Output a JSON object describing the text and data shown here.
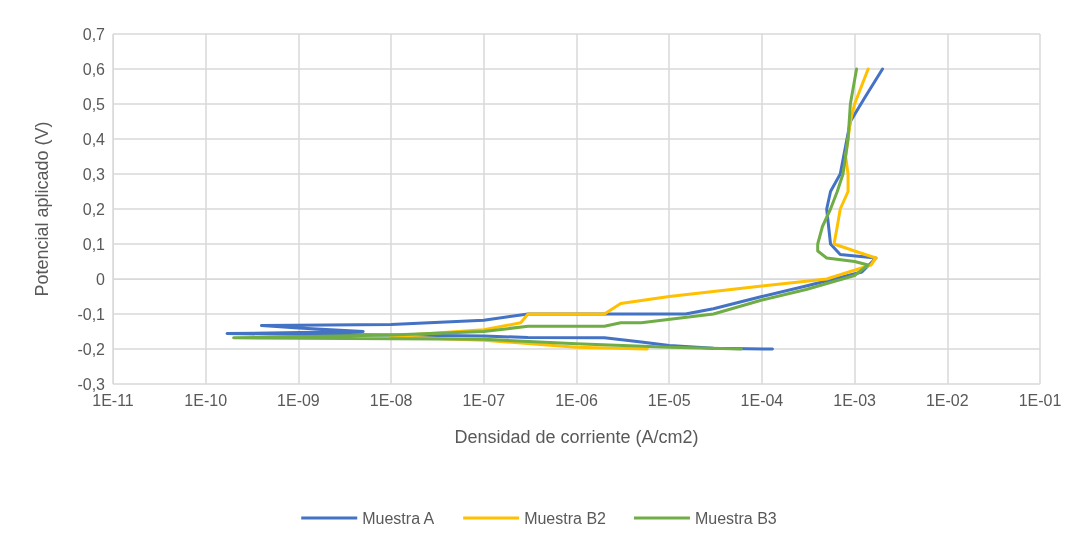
{
  "chart_data": {
    "type": "line",
    "xlabel": "Densidad de corriente (A/cm2)",
    "ylabel": "Potencial aplicado (V)",
    "log": "x",
    "grid": true,
    "legend": "bottom",
    "marker": "none",
    "line_style": "solid",
    "xlim": [
      1e-11,
      0.1
    ],
    "ylim": [
      -0.3,
      0.7
    ],
    "xticks": [
      {
        "value": 1e-11,
        "label": "1E-11"
      },
      {
        "value": 1e-10,
        "label": "1E-10"
      },
      {
        "value": 1e-09,
        "label": "1E-09"
      },
      {
        "value": 1e-08,
        "label": "1E-08"
      },
      {
        "value": 1e-07,
        "label": "1E-07"
      },
      {
        "value": 1e-06,
        "label": "1E-06"
      },
      {
        "value": 1e-05,
        "label": "1E-05"
      },
      {
        "value": 0.0001,
        "label": "1E-04"
      },
      {
        "value": 0.001,
        "label": "1E-03"
      },
      {
        "value": 0.01,
        "label": "1E-02"
      },
      {
        "value": 0.1,
        "label": "1E-01"
      }
    ],
    "yticks": [
      {
        "value": -0.3,
        "label": "-0,3"
      },
      {
        "value": -0.2,
        "label": "-0,2"
      },
      {
        "value": -0.1,
        "label": "-0,1"
      },
      {
        "value": 0,
        "label": "0"
      },
      {
        "value": 0.1,
        "label": "0,1"
      },
      {
        "value": 0.2,
        "label": "0,2"
      },
      {
        "value": 0.3,
        "label": "0,3"
      },
      {
        "value": 0.4,
        "label": "0,4"
      },
      {
        "value": 0.5,
        "label": "0,5"
      },
      {
        "value": 0.6,
        "label": "0,6"
      },
      {
        "value": 0.7,
        "label": "0,7"
      }
    ],
    "series": [
      {
        "name": "Muestra A",
        "color": "#4472c4",
        "x": [
          0.00013,
          3e-05,
          1e-05,
          5e-06,
          2e-06,
          3e-07,
          1e-07,
          1e-08,
          1e-09,
          1.7e-10,
          5e-09,
          1e-09,
          4e-10,
          1e-08,
          1e-07,
          3e-07,
          1.5e-05,
          3e-05,
          0.0001,
          0.0003,
          0.0012,
          0.0017,
          0.0007,
          0.00055,
          0.0005,
          0.00055,
          0.0007,
          0.0008,
          0.0009,
          0.0013,
          0.002
        ],
        "values": [
          -0.2,
          -0.198,
          -0.19,
          -0.18,
          -0.168,
          -0.167,
          -0.163,
          -0.16,
          -0.158,
          -0.156,
          -0.15,
          -0.14,
          -0.133,
          -0.13,
          -0.118,
          -0.1,
          -0.1,
          -0.085,
          -0.05,
          -0.02,
          0.02,
          0.06,
          0.07,
          0.1,
          0.2,
          0.25,
          0.3,
          0.38,
          0.45,
          0.52,
          0.6
        ]
      },
      {
        "name": "Muestra B2",
        "color": "#ffc000",
        "x": [
          5.8e-06,
          1e-06,
          1e-07,
          1e-08,
          1.5e-08,
          1e-07,
          2.5e-07,
          3e-07,
          2e-06,
          3e-06,
          1e-05,
          0.0001,
          0.0005,
          0.0015,
          0.0017,
          0.001,
          0.0006,
          0.00065,
          0.0007,
          0.00085,
          0.00085,
          0.0008,
          0.00085,
          0.0009,
          0.001,
          0.0014
        ],
        "values": [
          -0.2,
          -0.195,
          -0.175,
          -0.165,
          -0.16,
          -0.145,
          -0.125,
          -0.1,
          -0.1,
          -0.07,
          -0.05,
          -0.02,
          0,
          0.04,
          0.06,
          0.08,
          0.1,
          0.15,
          0.2,
          0.25,
          0.3,
          0.35,
          0.4,
          0.45,
          0.5,
          0.6
        ]
      },
      {
        "name": "Muestra B3",
        "color": "#70ad47",
        "x": [
          6e-05,
          1e-05,
          1e-06,
          1e-07,
          2e-10,
          1e-08,
          1e-07,
          3e-07,
          2e-06,
          3e-06,
          5e-06,
          3e-05,
          0.0001,
          0.0003,
          0.001,
          0.0014,
          0.001,
          0.0005,
          0.0004,
          0.0004,
          0.00045,
          0.00055,
          0.00065,
          0.00075,
          0.00085,
          0.0009,
          0.00105
        ],
        "values": [
          -0.2,
          -0.195,
          -0.185,
          -0.172,
          -0.168,
          -0.16,
          -0.15,
          -0.135,
          -0.135,
          -0.125,
          -0.125,
          -0.1,
          -0.06,
          -0.03,
          0.01,
          0.04,
          0.05,
          0.06,
          0.08,
          0.1,
          0.15,
          0.2,
          0.25,
          0.3,
          0.4,
          0.5,
          0.6
        ]
      }
    ]
  }
}
